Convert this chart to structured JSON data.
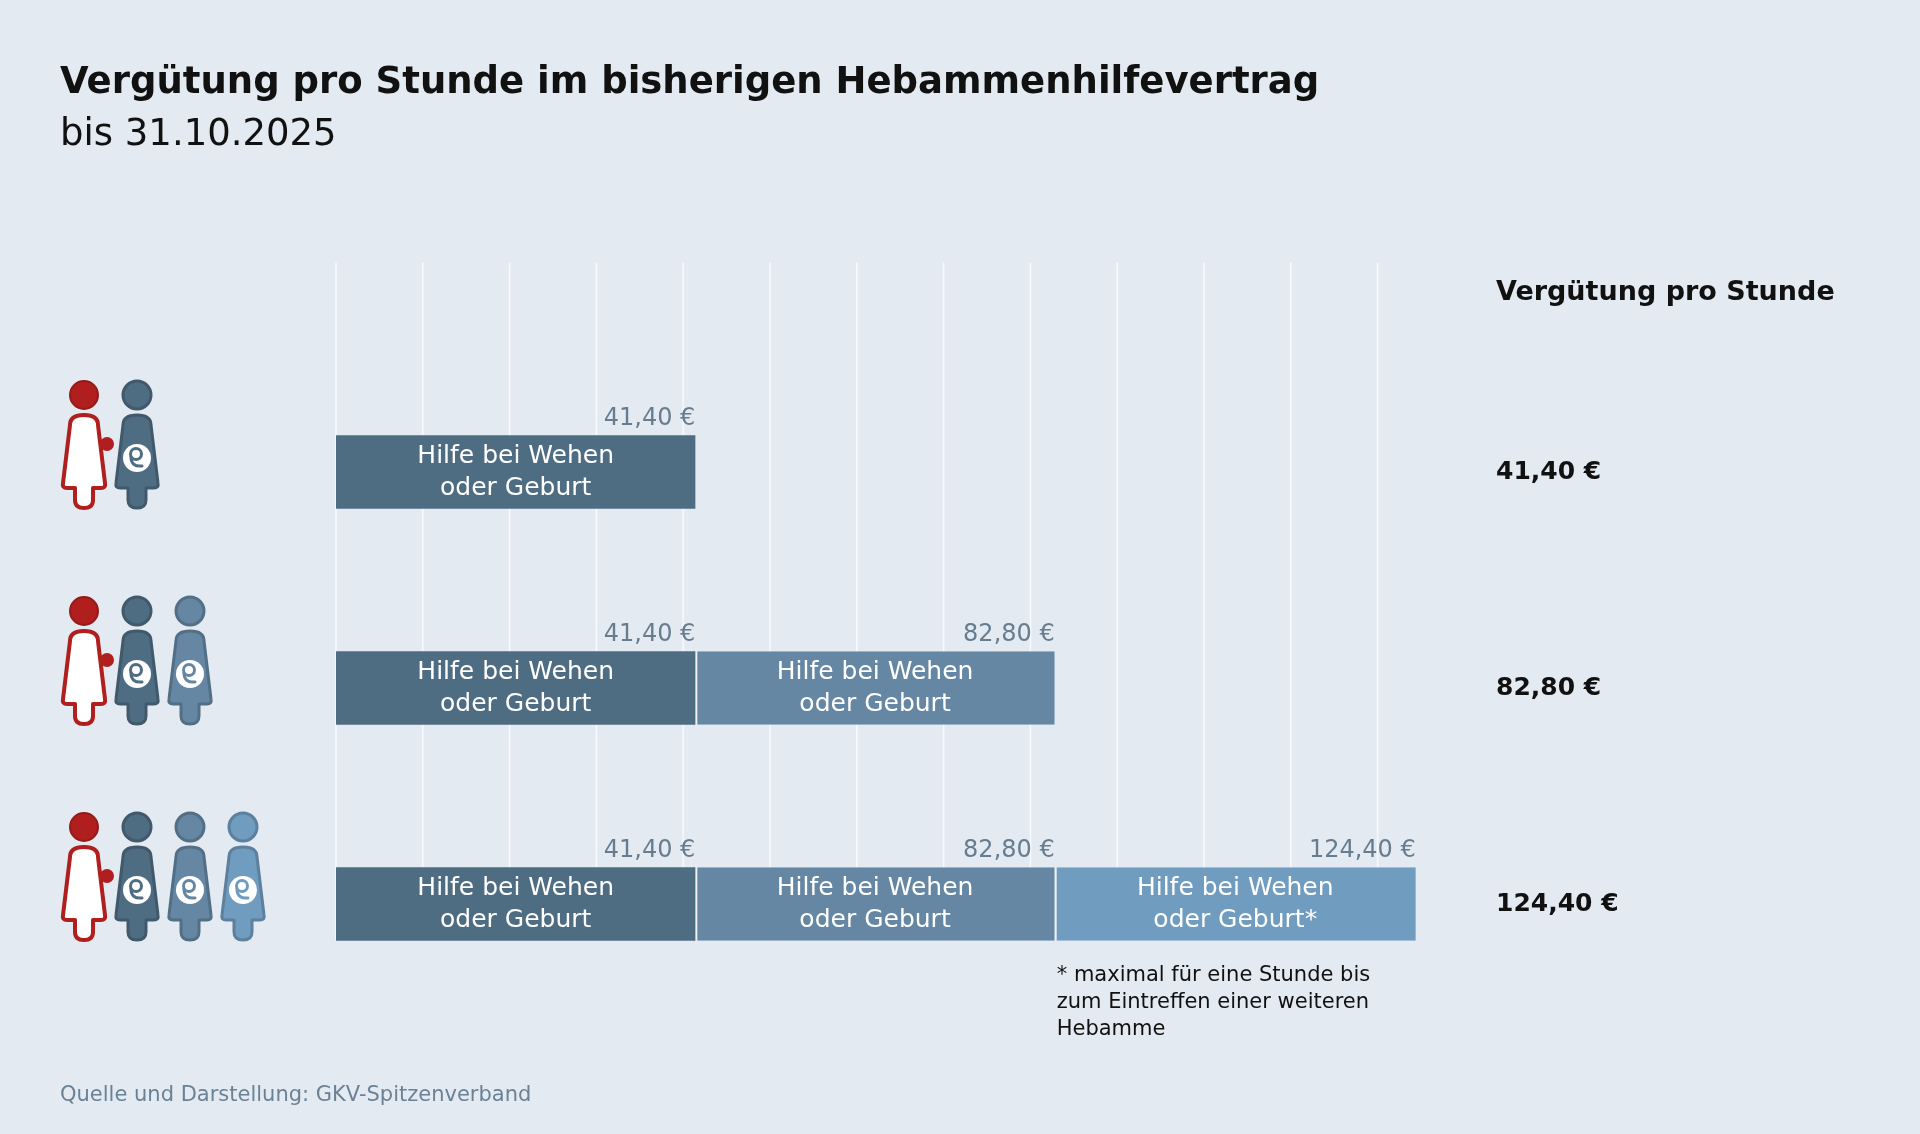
{
  "chart_data": {
    "type": "bar",
    "orientation": "horizontal",
    "stacked": true,
    "title": "Vergütung pro Stunde im bisherigen Hebammenhilfevertrag",
    "subtitle": "bis 31.10.2025",
    "categories": [
      "41,40 €",
      "82,80 €",
      "124,40 €"
    ],
    "ylabel": "Vergütung pro Stunde",
    "series": [
      {
        "name": "Hilfe bei Wehen oder Geburt",
        "color": "#4f6d82",
        "values": [
          41.4,
          41.4,
          41.4
        ],
        "value_labels": [
          null,
          "41,40 €",
          "41,40 €"
        ]
      },
      {
        "name": "Hilfe bei Wehen oder Geburt",
        "color": "#6587a3",
        "values": [
          null,
          41.4,
          41.4
        ]
      },
      {
        "name": "Hilfe bei Wehen oder Geburt*",
        "color": "#709cc0",
        "values": [
          null,
          null,
          41.6
        ]
      }
    ],
    "totals": [
      "41,40 €",
      "82,80 €",
      "124,40 €"
    ],
    "xlim": [
      0,
      125
    ],
    "xticks": [
      {
        "value": 0,
        "label": null
      },
      {
        "value": 10,
        "label": null
      },
      {
        "value": 20,
        "label": null
      },
      {
        "value": 30,
        "label": null
      },
      {
        "value": 40,
        "label": null
      },
      {
        "value": 50,
        "label": null
      },
      {
        "value": 60,
        "label": null
      },
      {
        "value": 70,
        "label": null
      },
      {
        "value": 80,
        "label": null
      },
      {
        "value": 90,
        "label": null
      },
      {
        "value": 100,
        "label": null
      },
      {
        "value": 110,
        "label": null
      },
      {
        "value": 120,
        "label": null
      }
    ],
    "grid": "x",
    "tick_labels": "y",
    "legend": false,
    "annotations": [
      {
        "text": "82,80 €",
        "x": 82.8,
        "y": "124,40 €"
      },
      "* maximal für eine Stunde bis zum Eintreffen einer weiteren Hebamme",
      "Quelle und Darstellung: GKV-Spitzenverband"
    ]
  }
}
